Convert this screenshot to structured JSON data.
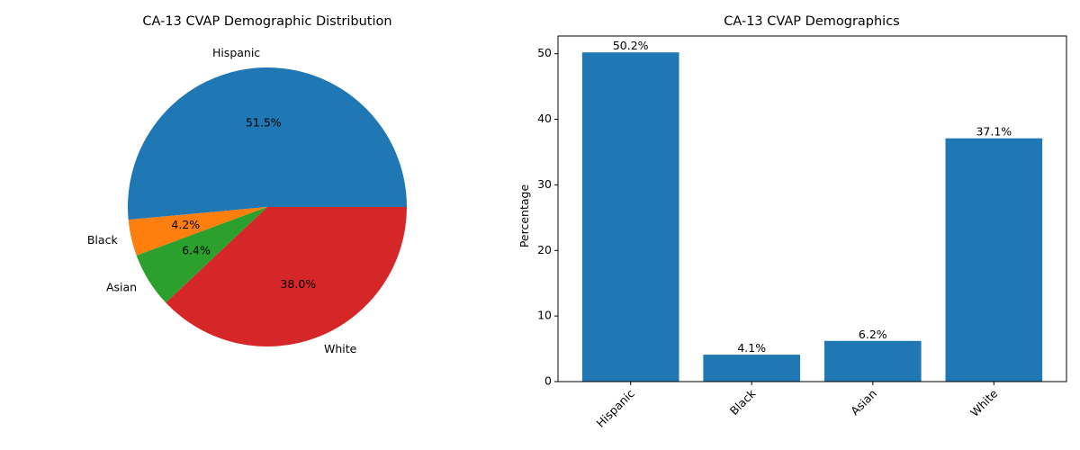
{
  "chart_data": [
    {
      "type": "pie",
      "title": "CA-13 CVAP Demographic Distribution",
      "labels": [
        "Hispanic",
        "Black",
        "Asian",
        "White"
      ],
      "values": [
        51.5,
        4.2,
        6.4,
        38.0
      ],
      "pct_labels": [
        "51.5%",
        "4.2%",
        "6.4%",
        "38.0%"
      ],
      "colors": [
        "#1f77b4",
        "#ff7f0e",
        "#2ca02c",
        "#d62728"
      ],
      "start_angle": "0 (counter-clockwise)"
    },
    {
      "type": "bar",
      "title": "CA-13 CVAP Demographics",
      "categories": [
        "Hispanic",
        "Black",
        "Asian",
        "White"
      ],
      "values": [
        50.2,
        4.1,
        6.2,
        37.1
      ],
      "value_labels": [
        "50.2%",
        "4.1%",
        "6.2%",
        "37.1%"
      ],
      "xlabel": "",
      "ylabel": "Percentage",
      "ylim": [
        0,
        52.7
      ],
      "yticks": [
        0,
        10,
        20,
        30,
        40,
        50
      ],
      "color": "#1f77b4",
      "grid": false,
      "xtick_rotation": 45
    }
  ]
}
